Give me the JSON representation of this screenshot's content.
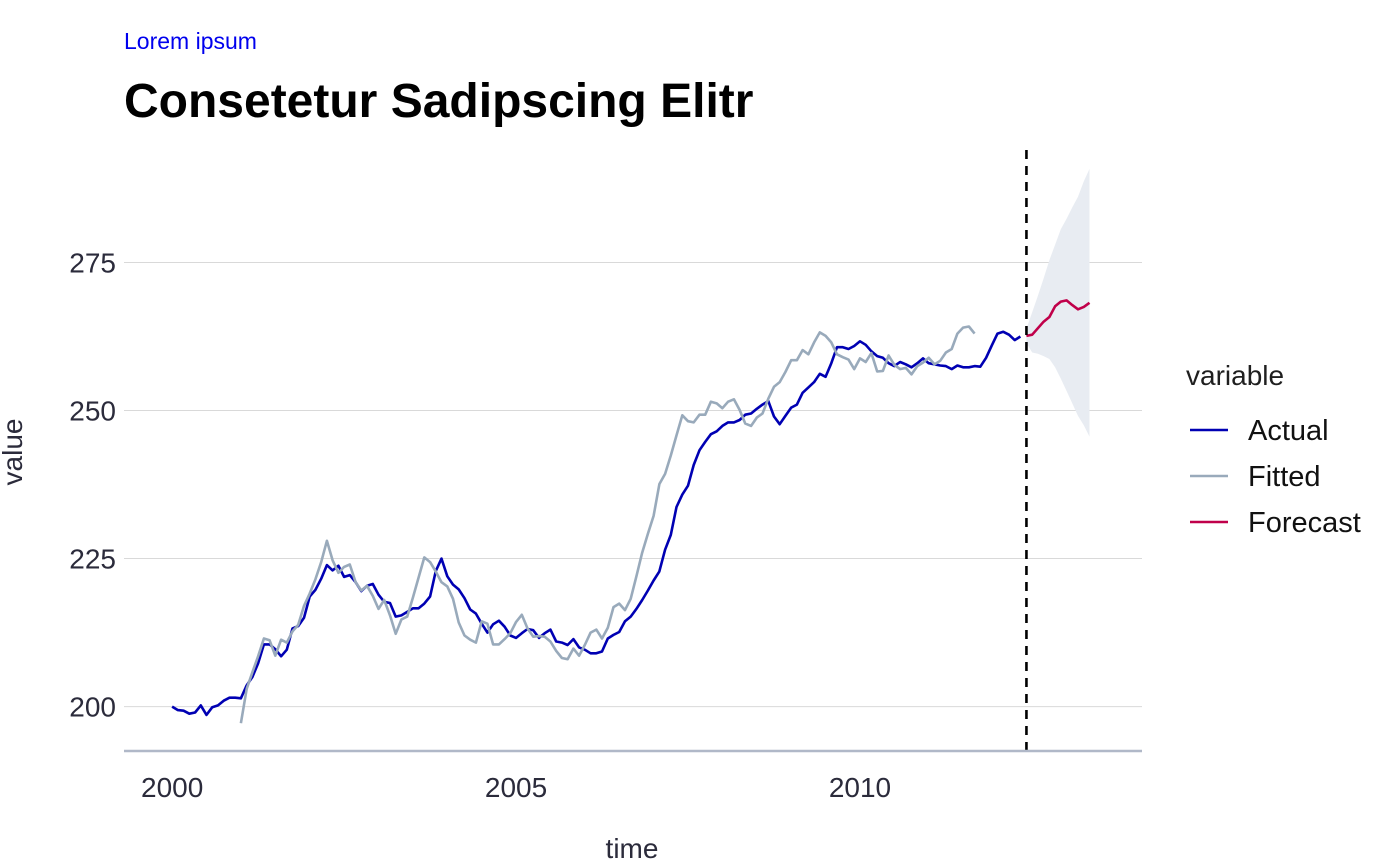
{
  "header": {
    "subtitle": "Lorem ipsum",
    "title": "Consetetur Sadipscing Elitr"
  },
  "colors": {
    "subtitle": "#0000ee",
    "actual": "#0000b3",
    "fitted": "#99aabb",
    "forecast": "#c0004a",
    "ribbon": "#e8ecf2",
    "grid": "#d9d9d9",
    "axis_line": "#b0b8c8",
    "cutoff": "#000000"
  },
  "chart_data": {
    "type": "line",
    "xlabel": "time",
    "ylabel": "value",
    "xlim": [
      1999.3,
      2014.1
    ],
    "ylim": [
      192.5,
      294
    ],
    "x_ticks": [
      2000,
      2005,
      2010
    ],
    "y_ticks": [
      200,
      225,
      250,
      275
    ],
    "grid": "horizontal",
    "legend": {
      "title": "variable",
      "position": "right",
      "entries": [
        "Actual",
        "Fitted",
        "Forecast"
      ]
    },
    "forecast_start": 2012.42,
    "series": [
      {
        "name": "Actual",
        "start": 2000.0,
        "step": 0.08333,
        "values": [
          200.0,
          199.4,
          199.3,
          198.8,
          199.0,
          200.2,
          198.6,
          199.9,
          200.2,
          201.0,
          201.5,
          201.5,
          201.4,
          203.6,
          205.0,
          207.3,
          210.5,
          210.5,
          209.7,
          208.5,
          209.6,
          213.2,
          213.6,
          215.0,
          218.6,
          219.7,
          221.6,
          223.9,
          223.0,
          223.8,
          221.9,
          222.2,
          221.0,
          219.5,
          220.4,
          220.7,
          218.9,
          217.7,
          217.5,
          215.2,
          215.4,
          216.0,
          216.6,
          216.6,
          217.4,
          218.6,
          222.9,
          225.0,
          222.0,
          220.6,
          219.8,
          218.3,
          216.4,
          215.7,
          214.0,
          212.5,
          213.9,
          214.5,
          213.5,
          212.0,
          211.6,
          212.4,
          213.1,
          212.9,
          211.6,
          212.4,
          213.0,
          211.0,
          210.8,
          210.4,
          211.4,
          210.0,
          209.6,
          209.0,
          209.0,
          209.3,
          211.5,
          212.1,
          212.6,
          214.4,
          215.2,
          216.5,
          218.0,
          219.6,
          221.3,
          222.8,
          226.5,
          229.0,
          233.7,
          235.8,
          237.3,
          240.8,
          243.3,
          244.7,
          246.0,
          246.5,
          247.4,
          248.0,
          248.0,
          248.4,
          249.3,
          249.5,
          250.3,
          251.0,
          251.6,
          249.0,
          247.7,
          249.1,
          250.5,
          251.0,
          253.0,
          253.9,
          254.8,
          256.2,
          255.7,
          258.0,
          260.7,
          260.7,
          260.4,
          260.9,
          261.7,
          261.1,
          260.0,
          259.2,
          258.9,
          258.0,
          257.5,
          258.2,
          257.8,
          257.3,
          258.0,
          258.8,
          258.0,
          257.8,
          257.6,
          257.5,
          257.0,
          257.6,
          257.3,
          257.3,
          257.5,
          257.4,
          258.9,
          261.0,
          263.0,
          263.3,
          262.8,
          261.9,
          262.5
        ]
      },
      {
        "name": "Fitted",
        "start": 2001.0,
        "step": 0.08333,
        "values": [
          197.2,
          203.0,
          205.8,
          208.5,
          211.5,
          211.2,
          208.6,
          211.3,
          210.8,
          212.7,
          213.8,
          217.0,
          219.1,
          221.5,
          224.4,
          228.0,
          224.7,
          222.6,
          223.6,
          224.0,
          221.0,
          219.6,
          220.4,
          218.7,
          216.5,
          218.0,
          215.4,
          212.3,
          214.7,
          215.2,
          218.4,
          221.8,
          225.2,
          224.4,
          222.8,
          221.0,
          220.3,
          218.2,
          214.2,
          212.0,
          211.3,
          210.8,
          214.4,
          214.0,
          210.5,
          210.5,
          211.4,
          212.4,
          214.3,
          215.5,
          213.2,
          211.8,
          211.9,
          211.8,
          211.0,
          209.4,
          208.2,
          208.0,
          209.8,
          208.6,
          210.4,
          212.5,
          213.0,
          211.5,
          213.3,
          216.8,
          217.4,
          216.3,
          218.2,
          222.0,
          226.0,
          229.2,
          232.2,
          237.6,
          239.3,
          242.4,
          245.8,
          249.2,
          248.2,
          248.0,
          249.3,
          249.3,
          251.5,
          251.2,
          250.4,
          251.5,
          251.9,
          250.1,
          247.8,
          247.4,
          248.8,
          249.5,
          252.0,
          254.0,
          254.8,
          256.5,
          258.5,
          258.5,
          260.2,
          259.5,
          261.5,
          263.2,
          262.6,
          261.5,
          259.5,
          259.0,
          258.6,
          257.0,
          258.8,
          258.2,
          259.7,
          256.6,
          256.7,
          259.3,
          257.7,
          257.0,
          257.2,
          256.1,
          257.5,
          258.1,
          258.9,
          257.8,
          258.4,
          259.8,
          260.4,
          263.0,
          264.0,
          264.2,
          263.0
        ]
      },
      {
        "name": "Forecast",
        "start": 2012.42,
        "step": 0.08333,
        "values": [
          262.6,
          262.8,
          263.9,
          265.0,
          265.8,
          267.6,
          268.4,
          268.6,
          267.8,
          267.1,
          267.5,
          268.2
        ],
        "lower": [
          261.4,
          259.8,
          259.6,
          259.2,
          258.7,
          257.3,
          255.4,
          253.3,
          251.2,
          249.1,
          247.5,
          245.6
        ],
        "upper": [
          263.8,
          266.6,
          269.4,
          272.3,
          275.4,
          278.0,
          280.6,
          282.4,
          284.3,
          286.1,
          288.7,
          290.8
        ]
      }
    ]
  }
}
